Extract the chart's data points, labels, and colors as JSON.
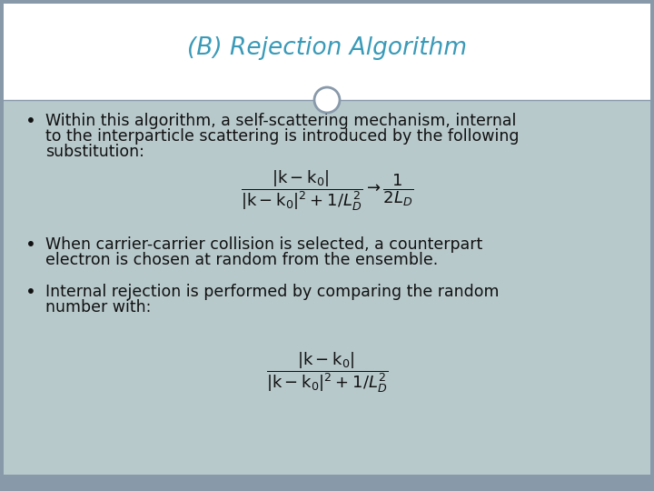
{
  "title": "(B) Rejection Algorithm",
  "title_color": "#3A9AB8",
  "title_fontsize": 19,
  "background_color": "#B8C9CC",
  "header_background": "#FFFFFF",
  "body_text_color": "#111111",
  "body_fontsize": 12.5,
  "formula_fontsize": 13,
  "bullet1_line1": "Within this algorithm, a self-scattering mechanism, internal",
  "bullet1_line2": "to the interparticle scattering is introduced by the following",
  "bullet1_line3": "substitution:",
  "bullet2_line1": "When carrier-carrier collision is selected, a counterpart",
  "bullet2_line2": "electron is chosen at random from the ensemble.",
  "bullet3_line1": "Internal rejection is performed by comparing the random",
  "bullet3_line2": "number with:",
  "circle_facecolor": "#FFFFFF",
  "circle_edgecolor": "#8899AA",
  "divider_color": "#8899AA",
  "border_color": "#8899AA",
  "bottom_bar_color": "#8899AA"
}
